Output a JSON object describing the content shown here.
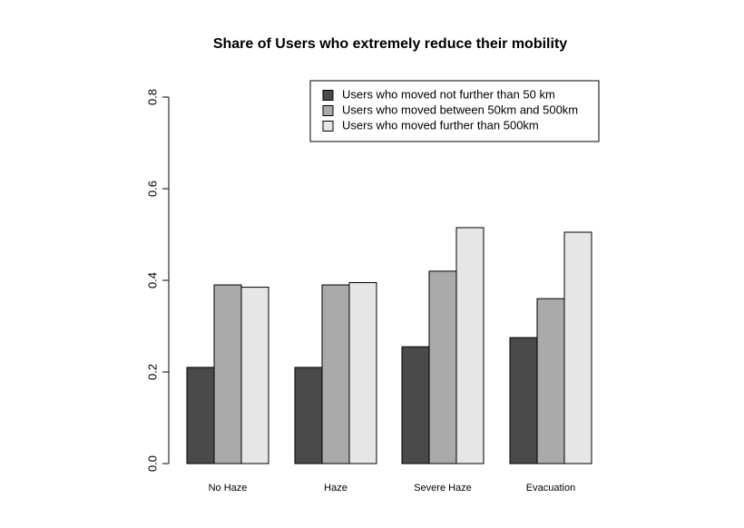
{
  "chart_data": {
    "type": "bar",
    "title": "Share of Users who extremely reduce their mobility",
    "xlabel": "",
    "ylabel": "",
    "categories": [
      "No Haze",
      "Haze",
      "Severe Haze",
      "Evacuation"
    ],
    "ylim": [
      0,
      0.8
    ],
    "yticks": [
      "0.0",
      "0.2",
      "0.4",
      "0.6",
      "0.8"
    ],
    "legend_position": "top-right",
    "grid": false,
    "series": [
      {
        "name": "Users who moved not further than 50 km",
        "color": "#4a4a4a",
        "values": [
          0.21,
          0.21,
          0.255,
          0.275
        ]
      },
      {
        "name": "Users who moved between 50km and 500km",
        "color": "#aaaaaa",
        "values": [
          0.39,
          0.39,
          0.42,
          0.36
        ]
      },
      {
        "name": "Users who moved further than 500km",
        "color": "#e6e6e6",
        "values": [
          0.385,
          0.395,
          0.515,
          0.505
        ]
      }
    ]
  }
}
